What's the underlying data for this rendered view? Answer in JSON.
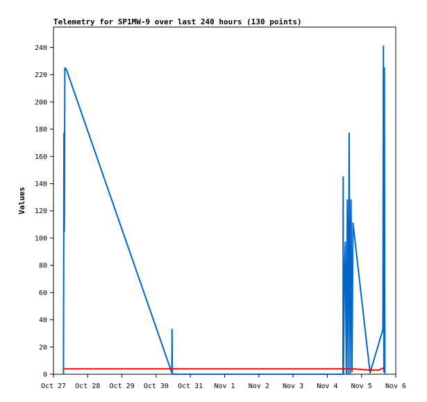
{
  "chart_data": {
    "type": "line",
    "title": "Telemetry for SP1MW-9 over last 240 hours (130 points)",
    "xlabel": "",
    "ylabel": "Values",
    "x_axis_type": "time (days)",
    "xlim": [
      "Oct 27",
      "Nov 6"
    ],
    "x_ticks": [
      "Oct 27",
      "Oct 28",
      "Oct 29",
      "Oct 30",
      "Oct 31",
      "Nov 1",
      "Nov 2",
      "Nov 3",
      "Nov 4",
      "Nov 5",
      "Nov 6"
    ],
    "ylim": [
      0,
      255
    ],
    "y_ticks": [
      0,
      20,
      40,
      60,
      80,
      100,
      120,
      140,
      160,
      180,
      200,
      220,
      240
    ],
    "grid": false,
    "legend": "none",
    "series": [
      {
        "color": "#0066cc",
        "points": [
          [
            "Oct 27 07:00",
            0
          ],
          [
            "Oct 27 07:20",
            177
          ],
          [
            "Oct 27 07:40",
            105
          ],
          [
            "Oct 27 08:00",
            225
          ],
          [
            "Oct 27 09:00",
            224
          ],
          [
            "Oct 30 11:00",
            1
          ],
          [
            "Oct 30 11:10",
            33
          ],
          [
            "Oct 30 11:20",
            0
          ],
          [
            "Nov 4 11:00",
            0
          ],
          [
            "Nov 4 11:10",
            145
          ],
          [
            "Nov 4 11:20",
            0
          ],
          [
            "Nov 4 12:00",
            72
          ],
          [
            "Nov 4 12:40",
            97
          ],
          [
            "Nov 4 13:20",
            0
          ],
          [
            "Nov 4 14:00",
            128
          ],
          [
            "Nov 4 14:40",
            0
          ],
          [
            "Nov 4 15:20",
            177
          ],
          [
            "Nov 4 16:00",
            0
          ],
          [
            "Nov 4 16:40",
            128
          ],
          [
            "Nov 4 17:20",
            2
          ],
          [
            "Nov 4 18:00",
            111
          ],
          [
            "Nov 5 06:00",
            1
          ],
          [
            "Nov 5 15:00",
            33
          ],
          [
            "Nov 5 15:20",
            241
          ],
          [
            "Nov 5 15:40",
            2
          ],
          [
            "Nov 5 16:00",
            225
          ],
          [
            "Nov 5 16:20",
            0
          ]
        ]
      },
      {
        "color": "#ff0000",
        "points": [
          [
            "Oct 27 07:00",
            4
          ],
          [
            "Nov 4 11:00",
            4
          ],
          [
            "Nov 4 18:00",
            4
          ],
          [
            "Nov 5 06:00",
            3
          ],
          [
            "Nov 5 12:00",
            3
          ],
          [
            "Nov 5 16:20",
            5
          ]
        ]
      }
    ]
  }
}
